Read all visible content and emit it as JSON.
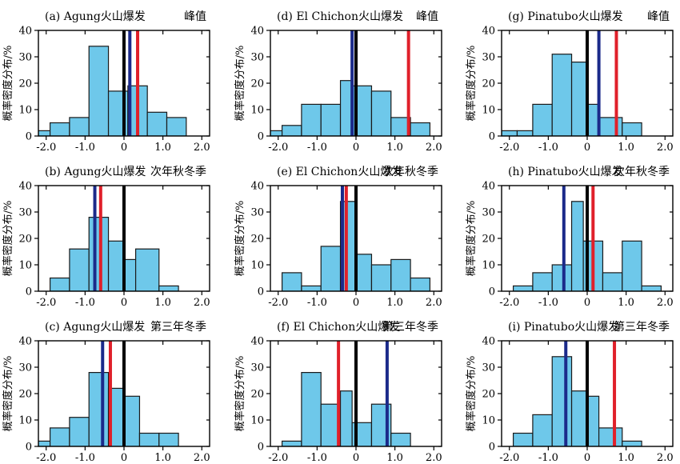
{
  "colors": {
    "bar_fill": "#6ec8ea",
    "bar_edge": "#1a1a1a",
    "zero_line": "#000000",
    "red_line": "#e0202a",
    "blue_line": "#1b2a8a"
  },
  "chart_data": [
    {
      "type": "bar",
      "panel": "a",
      "title_left": "(a) Agung火山爆发",
      "title_right": "峰值",
      "ylabel": "概率密度分布/%",
      "xlim": [
        -2.2,
        2.2
      ],
      "ylim": [
        0,
        40
      ],
      "xticks": [
        "-2.0",
        "-1.0",
        "0",
        "1.0",
        "2.0"
      ],
      "yticks": [
        "0",
        "10",
        "20",
        "30",
        "40"
      ],
      "bin_edges": [
        -2.2,
        -1.9,
        -1.4,
        -0.9,
        -0.4,
        0.1,
        0.6,
        1.1,
        1.6,
        2.2
      ],
      "values": [
        2,
        5,
        7,
        34,
        17,
        19,
        9,
        7,
        0
      ],
      "vlines": [
        {
          "x": 0.0,
          "color": "black"
        },
        {
          "x": 0.15,
          "color": "blue"
        },
        {
          "x": 0.35,
          "color": "red"
        }
      ]
    },
    {
      "type": "bar",
      "panel": "d",
      "title_left": "(d) El Chichon火山爆发",
      "title_right": "峰值",
      "ylabel": "概率密度分布/%",
      "xlim": [
        -2.2,
        2.2
      ],
      "ylim": [
        0,
        40
      ],
      "xticks": [
        "-2.0",
        "-1.0",
        "0",
        "1.0",
        "2.0"
      ],
      "yticks": [
        "0",
        "10",
        "20",
        "30",
        "40"
      ],
      "bin_edges": [
        -2.2,
        -1.9,
        -1.4,
        -0.9,
        -0.4,
        -0.1,
        0.4,
        0.9,
        1.4,
        1.9,
        2.2
      ],
      "values": [
        2,
        4,
        12,
        12,
        21,
        19,
        17,
        7,
        5,
        0
      ],
      "vlines": [
        {
          "x": 0.0,
          "color": "black"
        },
        {
          "x": -0.1,
          "color": "blue"
        },
        {
          "x": 1.35,
          "color": "red"
        }
      ]
    },
    {
      "type": "bar",
      "panel": "g",
      "title_left": "(g) Pinatubo火山爆发",
      "title_right": "峰值",
      "ylabel": "概率密度分布/%",
      "xlim": [
        -2.2,
        2.2
      ],
      "ylim": [
        0,
        40
      ],
      "xticks": [
        "-2.0",
        "-1.0",
        "0",
        "1.0",
        "2.0"
      ],
      "yticks": [
        "0",
        "10",
        "20",
        "30",
        "40"
      ],
      "bin_edges": [
        -2.2,
        -1.8,
        -1.4,
        -0.9,
        -0.4,
        0.0,
        0.3,
        0.9,
        1.4,
        1.9
      ],
      "values": [
        2,
        2,
        12,
        31,
        28,
        12,
        7,
        5,
        0
      ],
      "vlines": [
        {
          "x": 0.0,
          "color": "black"
        },
        {
          "x": 0.3,
          "color": "blue"
        },
        {
          "x": 0.75,
          "color": "red"
        }
      ]
    },
    {
      "type": "bar",
      "panel": "b",
      "title_left": "(b) Agung火山爆发",
      "title_right": "次年秋冬季",
      "ylabel": "概率密度分布/%",
      "xlim": [
        -2.2,
        2.2
      ],
      "ylim": [
        0,
        40
      ],
      "xticks": [
        "-2.0",
        "-1.0",
        "0",
        "1.0",
        "2.0"
      ],
      "yticks": [
        "0",
        "10",
        "20",
        "30",
        "40"
      ],
      "bin_edges": [
        -1.9,
        -1.4,
        -0.9,
        -0.4,
        0.0,
        0.3,
        0.9,
        1.4,
        1.9
      ],
      "values": [
        5,
        16,
        28,
        19,
        12,
        16,
        2,
        0
      ],
      "vlines": [
        {
          "x": 0.0,
          "color": "black"
        },
        {
          "x": -0.75,
          "color": "blue"
        },
        {
          "x": -0.6,
          "color": "red"
        }
      ]
    },
    {
      "type": "bar",
      "panel": "e",
      "title_left": "(e) El Chichon火山爆发",
      "title_right": "次年秋冬季",
      "ylabel": "概率密度分布/%",
      "xlim": [
        -2.2,
        2.2
      ],
      "ylim": [
        0,
        40
      ],
      "xticks": [
        "-2.0",
        "-1.0",
        "0",
        "1.0",
        "2.0"
      ],
      "yticks": [
        "0",
        "10",
        "20",
        "30",
        "40"
      ],
      "bin_edges": [
        -1.9,
        -1.4,
        -0.9,
        -0.4,
        0.0,
        0.4,
        0.9,
        1.4,
        1.9,
        2.2
      ],
      "values": [
        7,
        2,
        17,
        34,
        14,
        10,
        12,
        5,
        0
      ],
      "vlines": [
        {
          "x": 0.0,
          "color": "black"
        },
        {
          "x": -0.35,
          "color": "blue"
        },
        {
          "x": -0.25,
          "color": "red"
        }
      ]
    },
    {
      "type": "bar",
      "panel": "h",
      "title_left": "(h) Pinatubo火山爆发",
      "title_right": "次年秋冬季",
      "ylabel": "概率密度分布/%",
      "xlim": [
        -2.2,
        2.2
      ],
      "ylim": [
        0,
        40
      ],
      "xticks": [
        "-2.0",
        "-1.0",
        "0",
        "1.0",
        "2.0"
      ],
      "yticks": [
        "0",
        "10",
        "20",
        "30",
        "40"
      ],
      "bin_edges": [
        -1.9,
        -1.4,
        -0.9,
        -0.4,
        -0.1,
        0.4,
        0.9,
        1.4,
        1.9,
        2.2
      ],
      "values": [
        2,
        7,
        10,
        34,
        19,
        7,
        19,
        2,
        0
      ],
      "vlines": [
        {
          "x": 0.0,
          "color": "black"
        },
        {
          "x": -0.6,
          "color": "blue"
        },
        {
          "x": 0.15,
          "color": "red"
        }
      ]
    },
    {
      "type": "bar",
      "panel": "c",
      "title_left": "(c) Agung火山爆发",
      "title_right": "第三年冬季",
      "ylabel": "概率密度分布/%",
      "xlim": [
        -2.2,
        2.2
      ],
      "ylim": [
        0,
        40
      ],
      "xticks": [
        "-2.0",
        "-1.0",
        "0",
        "1.0",
        "2.0"
      ],
      "yticks": [
        "0",
        "10",
        "20",
        "30",
        "40"
      ],
      "bin_edges": [
        -2.2,
        -1.9,
        -1.4,
        -0.9,
        -0.4,
        0.0,
        0.4,
        0.9,
        1.4,
        1.9
      ],
      "values": [
        2,
        7,
        11,
        28,
        22,
        19,
        5,
        5,
        0
      ],
      "vlines": [
        {
          "x": 0.0,
          "color": "black"
        },
        {
          "x": -0.55,
          "color": "blue"
        },
        {
          "x": -0.35,
          "color": "red"
        }
      ]
    },
    {
      "type": "bar",
      "panel": "f",
      "title_left": "(f) El Chichon火山爆发",
      "title_right": "第三年冬季",
      "ylabel": "概率密度分布/%",
      "xlim": [
        -2.2,
        2.2
      ],
      "ylim": [
        0,
        40
      ],
      "xticks": [
        "-2.0",
        "-1.0",
        "0",
        "1.0",
        "2.0"
      ],
      "yticks": [
        "0",
        "10",
        "20",
        "30",
        "40"
      ],
      "bin_edges": [
        -1.9,
        -1.4,
        -0.9,
        -0.4,
        -0.1,
        0.4,
        0.9,
        1.4,
        1.9
      ],
      "values": [
        2,
        28,
        16,
        21,
        9,
        16,
        5,
        0
      ],
      "vlines": [
        {
          "x": 0.0,
          "color": "black"
        },
        {
          "x": 0.8,
          "color": "blue"
        },
        {
          "x": -0.45,
          "color": "red"
        }
      ]
    },
    {
      "type": "bar",
      "panel": "i",
      "title_left": "(i) Pinatubo火山爆发",
      "title_right": "第三年冬季",
      "ylabel": "概率密度分布/%",
      "xlim": [
        -2.2,
        2.2
      ],
      "ylim": [
        0,
        40
      ],
      "xticks": [
        "-2.0",
        "-1.0",
        "0",
        "1.0",
        "2.0"
      ],
      "yticks": [
        "0",
        "10",
        "20",
        "30",
        "40"
      ],
      "bin_edges": [
        -1.9,
        -1.4,
        -0.9,
        -0.4,
        0.0,
        0.3,
        0.9,
        1.4,
        1.9
      ],
      "values": [
        5,
        12,
        34,
        21,
        19,
        7,
        2,
        0
      ],
      "vlines": [
        {
          "x": 0.0,
          "color": "black"
        },
        {
          "x": -0.55,
          "color": "blue"
        },
        {
          "x": 0.7,
          "color": "red"
        }
      ]
    }
  ]
}
